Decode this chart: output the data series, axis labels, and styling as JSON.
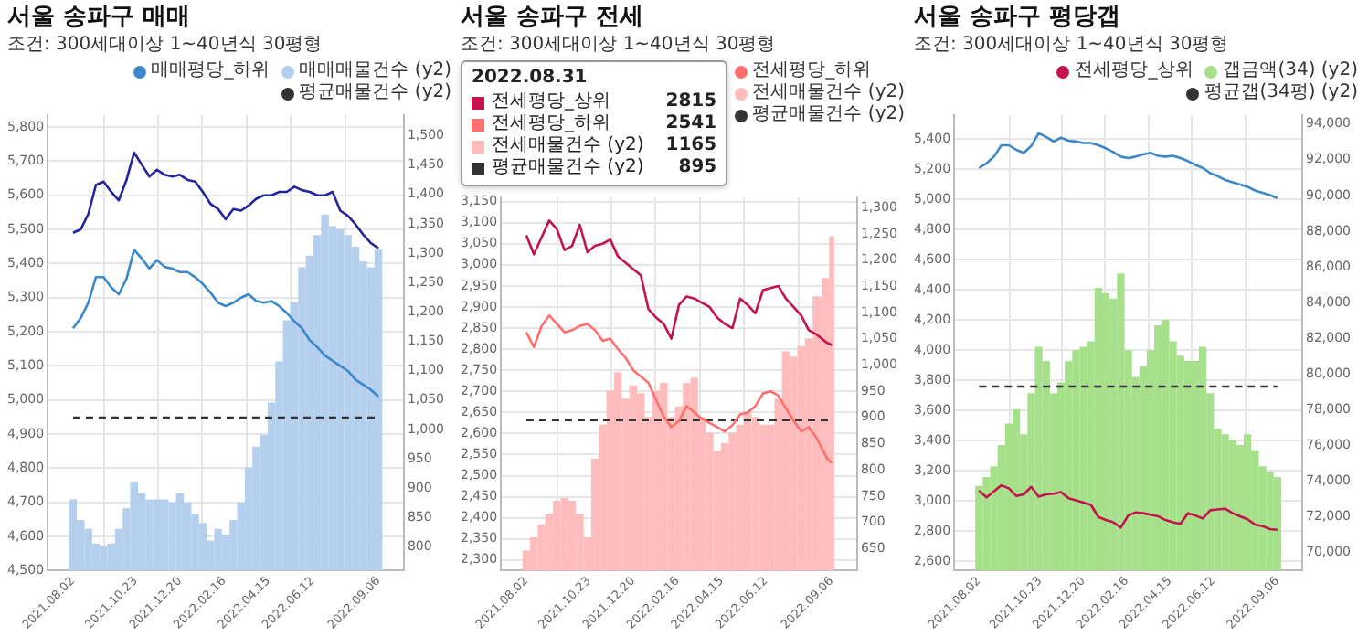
{
  "chart_data": [
    {
      "type": "line",
      "title": "서울 송파구 매매",
      "subtitle": "조건: 300세대이상 1~40년식 30평형",
      "legend": "top right",
      "grid": true,
      "x": [
        "2021-08-02",
        "2021-08-12",
        "2021-08-22",
        "2021-09-01",
        "2021-09-11",
        "2021-09-21",
        "2021-10-01",
        "2021-10-11",
        "2021-10-21",
        "2021-10-31",
        "2021-11-10",
        "2021-11-20",
        "2021-11-30",
        "2021-12-10",
        "2021-12-20",
        "2021-12-30",
        "2022-01-09",
        "2022-01-19",
        "2022-01-29",
        "2022-02-08",
        "2022-02-18",
        "2022-02-28",
        "2022-03-10",
        "2022-03-20",
        "2022-03-30",
        "2022-04-09",
        "2022-04-19",
        "2022-04-29",
        "2022-05-09",
        "2022-05-19",
        "2022-05-29",
        "2022-06-08",
        "2022-06-18",
        "2022-06-28",
        "2022-07-08",
        "2022-07-18",
        "2022-07-28",
        "2022-08-07",
        "2022-08-17",
        "2022-08-27",
        "2022-09-06"
      ],
      "xlim": [
        "2021-08-02",
        "2022-09-06"
      ],
      "xticks": [
        {
          "value": "2021-08-02",
          "label": "2021.08.02"
        },
        {
          "value": "2021-10-23",
          "label": "2021.10.23"
        },
        {
          "value": "2021-12-20",
          "label": "2021.12.20"
        },
        {
          "value": "2022-02-16",
          "label": "2022.02.16"
        },
        {
          "value": "2022-04-15",
          "label": "2022.04.15"
        },
        {
          "value": "2022-06-12",
          "label": "2022.06.12"
        },
        {
          "value": "2022-09-06",
          "label": "2022.09.06"
        }
      ],
      "ylim": [
        4500,
        5835
      ],
      "yticks": [
        {
          "value": 4500,
          "label": "4,500"
        },
        {
          "value": 4600,
          "label": "4,600"
        },
        {
          "value": 4700,
          "label": "4,700"
        },
        {
          "value": 4800,
          "label": "4,800"
        },
        {
          "value": 4900,
          "label": "4,900"
        },
        {
          "value": 5000,
          "label": "5,000"
        },
        {
          "value": 5100,
          "label": "5,100"
        },
        {
          "value": 5200,
          "label": "5,200"
        },
        {
          "value": 5300,
          "label": "5,300"
        },
        {
          "value": 5400,
          "label": "5,400"
        },
        {
          "value": 5500,
          "label": "5,500"
        },
        {
          "value": 5600,
          "label": "5,600"
        },
        {
          "value": 5700,
          "label": "5,700"
        },
        {
          "value": 5800,
          "label": "5,800"
        }
      ],
      "y2lim": [
        760,
        1535
      ],
      "y2ticks": [
        800,
        850,
        900,
        950,
        {
          "value": 1000,
          "label": "1,000"
        },
        {
          "value": 1050,
          "label": "1,050"
        },
        {
          "value": 1100,
          "label": "1,100"
        },
        {
          "value": 1150,
          "label": "1,150"
        },
        {
          "value": 1200,
          "label": "1,200"
        },
        {
          "value": 1250,
          "label": "1,250"
        },
        {
          "value": 1300,
          "label": "1,300"
        },
        {
          "value": 1350,
          "label": "1,350"
        },
        {
          "value": 1400,
          "label": "1,400"
        },
        {
          "value": 1450,
          "label": "1,450"
        },
        {
          "value": 1500,
          "label": "1,500"
        }
      ],
      "series": [
        {
          "color": "#25259a",
          "values": [
            5490,
            5500,
            5545,
            5630,
            5640,
            5610,
            5585,
            5645,
            5725,
            5690,
            5655,
            5675,
            5660,
            5655,
            5660,
            5645,
            5640,
            5610,
            5575,
            5560,
            5530,
            5560,
            5555,
            5570,
            5590,
            5600,
            5600,
            5610,
            5610,
            5625,
            5615,
            5610,
            5600,
            5600,
            5610,
            5555,
            5540,
            5515,
            5485,
            5460,
            5445
          ]
        },
        {
          "name": "매매평당_하위",
          "color": "#3c88c9",
          "values": [
            5210,
            5240,
            5285,
            5360,
            5360,
            5330,
            5310,
            5355,
            5440,
            5415,
            5385,
            5410,
            5390,
            5385,
            5375,
            5375,
            5360,
            5340,
            5315,
            5285,
            5275,
            5285,
            5300,
            5310,
            5290,
            5285,
            5290,
            5275,
            5255,
            5230,
            5210,
            5175,
            5155,
            5130,
            5115,
            5100,
            5085,
            5060,
            5045,
            5030,
            5010
          ]
        },
        {
          "name": "매매매물건수 (y2)",
          "type": "bar",
          "axis": "y2",
          "color": "#b5cfee",
          "values": [
            880,
            845,
            830,
            805,
            800,
            805,
            830,
            865,
            910,
            890,
            880,
            880,
            880,
            875,
            890,
            875,
            855,
            840,
            810,
            830,
            820,
            845,
            875,
            935,
            970,
            990,
            1045,
            1115,
            1185,
            1215,
            1275,
            1295,
            1330,
            1365,
            1345,
            1340,
            1330,
            1310,
            1285,
            1275,
            1305
          ]
        },
        {
          "name": "평균매물건수 (y2)",
          "axis": "y2",
          "color": "#333333",
          "line_style": "dashed",
          "x": [
            "2021-08-02",
            "2022-09-06"
          ],
          "values": [
            1020,
            1020
          ]
        }
      ]
    },
    {
      "type": "line",
      "title": "서울 송파구 전세",
      "subtitle": "조건: 300세대이상 1~40년식 30평형",
      "legend": "top right",
      "grid": true,
      "x": [
        "2021-08-02",
        "2021-08-12",
        "2021-08-22",
        "2021-09-01",
        "2021-09-11",
        "2021-09-21",
        "2021-10-01",
        "2021-10-11",
        "2021-10-21",
        "2021-10-31",
        "2021-11-10",
        "2021-11-20",
        "2021-11-30",
        "2021-12-10",
        "2021-12-20",
        "2021-12-30",
        "2022-01-09",
        "2022-01-19",
        "2022-01-29",
        "2022-02-08",
        "2022-02-18",
        "2022-02-28",
        "2022-03-10",
        "2022-03-20",
        "2022-03-30",
        "2022-04-09",
        "2022-04-19",
        "2022-04-29",
        "2022-05-09",
        "2022-05-19",
        "2022-05-29",
        "2022-06-08",
        "2022-06-18",
        "2022-06-28",
        "2022-07-08",
        "2022-07-18",
        "2022-07-28",
        "2022-08-07",
        "2022-08-17",
        "2022-08-31",
        "2022-09-06"
      ],
      "xlim": [
        "2021-08-02",
        "2022-09-06"
      ],
      "xticks": [
        {
          "value": "2021-08-02",
          "label": "2021.08.02"
        },
        {
          "value": "2021-10-23",
          "label": "2021.10.23"
        },
        {
          "value": "2021-12-20",
          "label": "2021.12.20"
        },
        {
          "value": "2022-02-16",
          "label": "2022.02.16"
        },
        {
          "value": "2022-04-15",
          "label": "2022.04.15"
        },
        {
          "value": "2022-06-12",
          "label": "2022.06.12"
        },
        {
          "value": "2022-09-06",
          "label": "2022.09.06"
        }
      ],
      "ylim": [
        2275,
        3160
      ],
      "yticks": [
        {
          "value": 2300,
          "label": "2,300"
        },
        {
          "value": 2350,
          "label": "2,350"
        },
        {
          "value": 2400,
          "label": "2,400"
        },
        {
          "value": 2450,
          "label": "2,450"
        },
        {
          "value": 2500,
          "label": "2,500"
        },
        {
          "value": 2550,
          "label": "2,550"
        },
        {
          "value": 2600,
          "label": "2,600"
        },
        {
          "value": 2650,
          "label": "2,650"
        },
        {
          "value": 2700,
          "label": "2,700"
        },
        {
          "value": 2750,
          "label": "2,750"
        },
        {
          "value": 2800,
          "label": "2,800"
        },
        {
          "value": 2850,
          "label": "2,850"
        },
        {
          "value": 2900,
          "label": "2,900"
        },
        {
          "value": 2950,
          "label": "2,950"
        },
        {
          "value": 3000,
          "label": "3,000"
        },
        {
          "value": 3050,
          "label": "3,050"
        },
        {
          "value": 3100,
          "label": "3,100"
        },
        {
          "value": 3150,
          "label": "3,150"
        }
      ],
      "y2lim": [
        608,
        1320
      ],
      "y2ticks": [
        650,
        700,
        750,
        800,
        850,
        900,
        950,
        {
          "value": 1000,
          "label": "1,000"
        },
        {
          "value": 1050,
          "label": "1,050"
        },
        {
          "value": 1100,
          "label": "1,100"
        },
        {
          "value": 1150,
          "label": "1,150"
        },
        {
          "value": 1200,
          "label": "1,200"
        },
        {
          "value": 1250,
          "label": "1,250"
        },
        {
          "value": 1300,
          "label": "1,300"
        }
      ],
      "series": [
        {
          "color": "#c2134f",
          "values": [
            3070,
            3025,
            3065,
            3105,
            3085,
            3035,
            3045,
            3095,
            3030,
            3045,
            3050,
            3060,
            3020,
            3005,
            2990,
            2975,
            2895,
            2875,
            2860,
            2825,
            2905,
            2925,
            2920,
            2910,
            2900,
            2875,
            2860,
            2850,
            2920,
            2905,
            2885,
            2940,
            2945,
            2950,
            2920,
            2900,
            2880,
            2845,
            2835,
            2815,
            2810
          ]
        },
        {
          "name": "전세평당_하위",
          "color": "#ff6f6f",
          "values": [
            2840,
            2805,
            2855,
            2880,
            2860,
            2840,
            2845,
            2855,
            2860,
            2845,
            2820,
            2825,
            2800,
            2780,
            2750,
            2735,
            2720,
            2680,
            2640,
            2615,
            2630,
            2665,
            2650,
            2635,
            2625,
            2615,
            2605,
            2620,
            2645,
            2650,
            2665,
            2695,
            2700,
            2690,
            2660,
            2630,
            2605,
            2615,
            2590,
            2541,
            2530
          ]
        },
        {
          "name": "전세매물건수 (y2)",
          "type": "bar",
          "axis": "y2",
          "color": "#ffbcbc",
          "values": [
            645,
            670,
            695,
            715,
            740,
            745,
            740,
            715,
            670,
            820,
            885,
            950,
            985,
            935,
            960,
            945,
            900,
            950,
            965,
            900,
            920,
            965,
            975,
            900,
            870,
            835,
            850,
            870,
            885,
            910,
            900,
            885,
            885,
            935,
            1025,
            1015,
            1035,
            1050,
            1130,
            1165,
            1245
          ]
        },
        {
          "name": "평균매물건수 (y2)",
          "axis": "y2",
          "color": "#333333",
          "line_style": "dashed",
          "x": [
            "2021-08-02",
            "2022-09-06"
          ],
          "values": [
            895,
            895
          ]
        }
      ],
      "annotations": [
        "2022.08.31",
        "전세평당_상위",
        "2815",
        "전세평당_하위",
        "2541",
        "전세매물건수 (y2)",
        "1165",
        "평균매물건수 (y2)",
        "895"
      ]
    },
    {
      "type": "line",
      "title": "서울 송파구 평당갭",
      "subtitle": "조건: 300세대이상 1~40년식 30평형",
      "legend": "top right",
      "grid": true,
      "x": [
        "2021-08-02",
        "2021-08-12",
        "2021-08-22",
        "2021-09-01",
        "2021-09-11",
        "2021-09-21",
        "2021-10-01",
        "2021-10-11",
        "2021-10-21",
        "2021-10-31",
        "2021-11-10",
        "2021-11-20",
        "2021-11-30",
        "2021-12-10",
        "2021-12-20",
        "2021-12-30",
        "2022-01-09",
        "2022-01-19",
        "2022-01-29",
        "2022-02-08",
        "2022-02-18",
        "2022-02-28",
        "2022-03-10",
        "2022-03-20",
        "2022-03-30",
        "2022-04-09",
        "2022-04-19",
        "2022-04-29",
        "2022-05-09",
        "2022-05-19",
        "2022-05-29",
        "2022-06-08",
        "2022-06-18",
        "2022-06-28",
        "2022-07-08",
        "2022-07-18",
        "2022-07-28",
        "2022-08-07",
        "2022-08-17",
        "2022-08-27",
        "2022-09-06"
      ],
      "xlim": [
        "2021-08-02",
        "2022-09-06"
      ],
      "xticks": [
        {
          "value": "2021-08-02",
          "label": "2021.08.02"
        },
        {
          "value": "2021-10-23",
          "label": "2021.10.23"
        },
        {
          "value": "2021-12-20",
          "label": "2021.12.20"
        },
        {
          "value": "2022-02-16",
          "label": "2022.02.16"
        },
        {
          "value": "2022-04-15",
          "label": "2022.04.15"
        },
        {
          "value": "2022-06-12",
          "label": "2022.06.12"
        },
        {
          "value": "2022-09-06",
          "label": "2022.09.06"
        }
      ],
      "ylim": [
        2540,
        5560
      ],
      "yticks": [
        {
          "value": 2600,
          "label": "2,600"
        },
        {
          "value": 2800,
          "label": "2,800"
        },
        {
          "value": 3000,
          "label": "3,000"
        },
        {
          "value": 3200,
          "label": "3,200"
        },
        {
          "value": 3400,
          "label": "3,400"
        },
        {
          "value": 3600,
          "label": "3,600"
        },
        {
          "value": 3800,
          "label": "3,800"
        },
        {
          "value": 4000,
          "label": "4,000"
        },
        {
          "value": 4200,
          "label": "4,200"
        },
        {
          "value": 4400,
          "label": "4,400"
        },
        {
          "value": 4600,
          "label": "4,600"
        },
        {
          "value": 4800,
          "label": "4,800"
        },
        {
          "value": 5000,
          "label": "5,000"
        },
        {
          "value": 5200,
          "label": "5,200"
        },
        {
          "value": 5400,
          "label": "5,400"
        }
      ],
      "y2lim": [
        69000,
        94500
      ],
      "y2ticks": [
        {
          "value": 70000,
          "label": "70,000"
        },
        {
          "value": 72000,
          "label": "72,000"
        },
        {
          "value": 74000,
          "label": "74,000"
        },
        {
          "value": 76000,
          "label": "76,000"
        },
        {
          "value": 78000,
          "label": "78,000"
        },
        {
          "value": 80000,
          "label": "80,000"
        },
        {
          "value": 82000,
          "label": "82,000"
        },
        {
          "value": 84000,
          "label": "84,000"
        },
        {
          "value": 86000,
          "label": "86,000"
        },
        {
          "value": 88000,
          "label": "88,000"
        },
        {
          "value": 90000,
          "label": "90,000"
        },
        {
          "value": 92000,
          "label": "92,000"
        },
        {
          "value": 94000,
          "label": "94,000"
        }
      ],
      "series": [
        {
          "color": "#3c88c9",
          "values": [
            5210,
            5240,
            5285,
            5360,
            5360,
            5330,
            5310,
            5355,
            5440,
            5415,
            5385,
            5410,
            5390,
            5385,
            5375,
            5375,
            5360,
            5340,
            5315,
            5285,
            5275,
            5285,
            5300,
            5310,
            5290,
            5285,
            5290,
            5275,
            5255,
            5230,
            5210,
            5175,
            5155,
            5130,
            5115,
            5100,
            5085,
            5060,
            5045,
            5030,
            5010
          ]
        },
        {
          "name": "전세평당_상위",
          "color": "#c2134f",
          "values": [
            3070,
            3025,
            3065,
            3105,
            3085,
            3035,
            3045,
            3095,
            3030,
            3045,
            3050,
            3060,
            3020,
            3005,
            2990,
            2975,
            2895,
            2875,
            2860,
            2825,
            2905,
            2925,
            2920,
            2910,
            2900,
            2875,
            2860,
            2850,
            2920,
            2905,
            2885,
            2940,
            2945,
            2950,
            2920,
            2900,
            2880,
            2845,
            2835,
            2815,
            2810
          ]
        },
        {
          "name": "갭금액(34) (y2)",
          "type": "bar",
          "axis": "y2",
          "color": "#a7e08a",
          "values": [
            73700,
            74200,
            74800,
            76000,
            77200,
            78000,
            76600,
            78900,
            81500,
            80700,
            78900,
            79500,
            80700,
            81300,
            81500,
            81800,
            84800,
            84500,
            84200,
            85600,
            81300,
            79800,
            80400,
            81300,
            82700,
            83000,
            81800,
            81000,
            80700,
            80700,
            81500,
            78900,
            76900,
            76600,
            76300,
            76000,
            76600,
            75700,
            74800,
            74500,
            74200
          ]
        },
        {
          "name": "평균갭(34평) (y2)",
          "axis": "y2",
          "color": "#333333",
          "line_style": "dashed",
          "x": [
            "2021-08-02",
            "2022-09-06"
          ],
          "values": [
            79300,
            79300
          ]
        }
      ]
    }
  ]
}
